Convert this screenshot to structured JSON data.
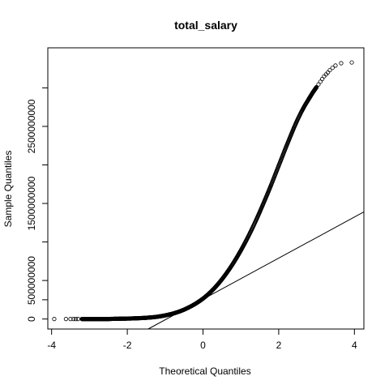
{
  "chart_data": {
    "type": "scatter",
    "title": "total_salary",
    "xlabel": "Theoretical Quantiles",
    "ylabel": "Sample Quantiles",
    "xlim": [
      -4.1,
      4.25
    ],
    "ylim": [
      -130000000,
      3520000000
    ],
    "x_ticks": [
      {
        "value": -4,
        "label": "-4"
      },
      {
        "value": -2,
        "label": "-2"
      },
      {
        "value": 0,
        "label": "0"
      },
      {
        "value": 2,
        "label": "2"
      },
      {
        "value": 4,
        "label": "4"
      }
    ],
    "y_ticks": [
      {
        "value": 0,
        "label": "0"
      },
      {
        "value": 500000000,
        "label": "500000000"
      },
      {
        "value": 1500000000,
        "label": "1500000000"
      },
      {
        "value": 2500000000,
        "label": "2500000000"
      }
    ],
    "y_minor_ticks": [
      250000000,
      1000000000,
      2000000000,
      3000000000
    ],
    "reference_line": {
      "x": [
        -1.45,
        4.25
      ],
      "y": [
        -130000000,
        1390000000
      ]
    },
    "points": {
      "x": [
        -3.93,
        -3.62,
        -3.5,
        -3.42,
        -3.36,
        -3.3,
        -3.2,
        -3.1,
        -3.0,
        -2.9,
        -2.8,
        -2.7,
        -2.6,
        -2.5,
        -2.4,
        -2.3,
        -2.2,
        -2.1,
        -2.0,
        -1.9,
        -1.8,
        -1.7,
        -1.6,
        -1.5,
        -1.4,
        -1.3,
        -1.2,
        -1.1,
        -1.0,
        -0.9,
        -0.8,
        -0.7,
        -0.6,
        -0.5,
        -0.4,
        -0.3,
        -0.2,
        -0.1,
        0.0,
        0.1,
        0.2,
        0.3,
        0.4,
        0.5,
        0.6,
        0.7,
        0.8,
        0.9,
        1.0,
        1.1,
        1.2,
        1.3,
        1.4,
        1.5,
        1.6,
        1.7,
        1.8,
        1.9,
        2.0,
        2.1,
        2.2,
        2.3,
        2.4,
        2.5,
        2.6,
        2.7,
        2.8,
        2.85,
        2.9,
        2.95,
        3.0,
        3.05,
        3.1,
        3.15,
        3.2,
        3.25,
        3.3,
        3.35,
        3.42,
        3.5,
        3.65,
        3.93
      ],
      "y": [
        0,
        0,
        0,
        0,
        0,
        0,
        0,
        0,
        0,
        0,
        0,
        0,
        0,
        0,
        2000000,
        3000000,
        4000000,
        5000000,
        6000000,
        7000000,
        9000000,
        11000000,
        13000000,
        16000000,
        20000000,
        24000000,
        30000000,
        38000000,
        47000000,
        58000000,
        70000000,
        85000000,
        102000000,
        122000000,
        145000000,
        170000000,
        198000000,
        230000000,
        265000000,
        305000000,
        350000000,
        400000000,
        455000000,
        515000000,
        580000000,
        650000000,
        725000000,
        805000000,
        890000000,
        980000000,
        1075000000,
        1175000000,
        1280000000,
        1390000000,
        1505000000,
        1620000000,
        1740000000,
        1865000000,
        1990000000,
        2115000000,
        2240000000,
        2360000000,
        2480000000,
        2590000000,
        2690000000,
        2780000000,
        2860000000,
        2900000000,
        2940000000,
        2975000000,
        3010000000,
        3045000000,
        3080000000,
        3115000000,
        3150000000,
        3175000000,
        3200000000,
        3230000000,
        3260000000,
        3290000000,
        3320000000,
        3330000000
      ]
    }
  }
}
